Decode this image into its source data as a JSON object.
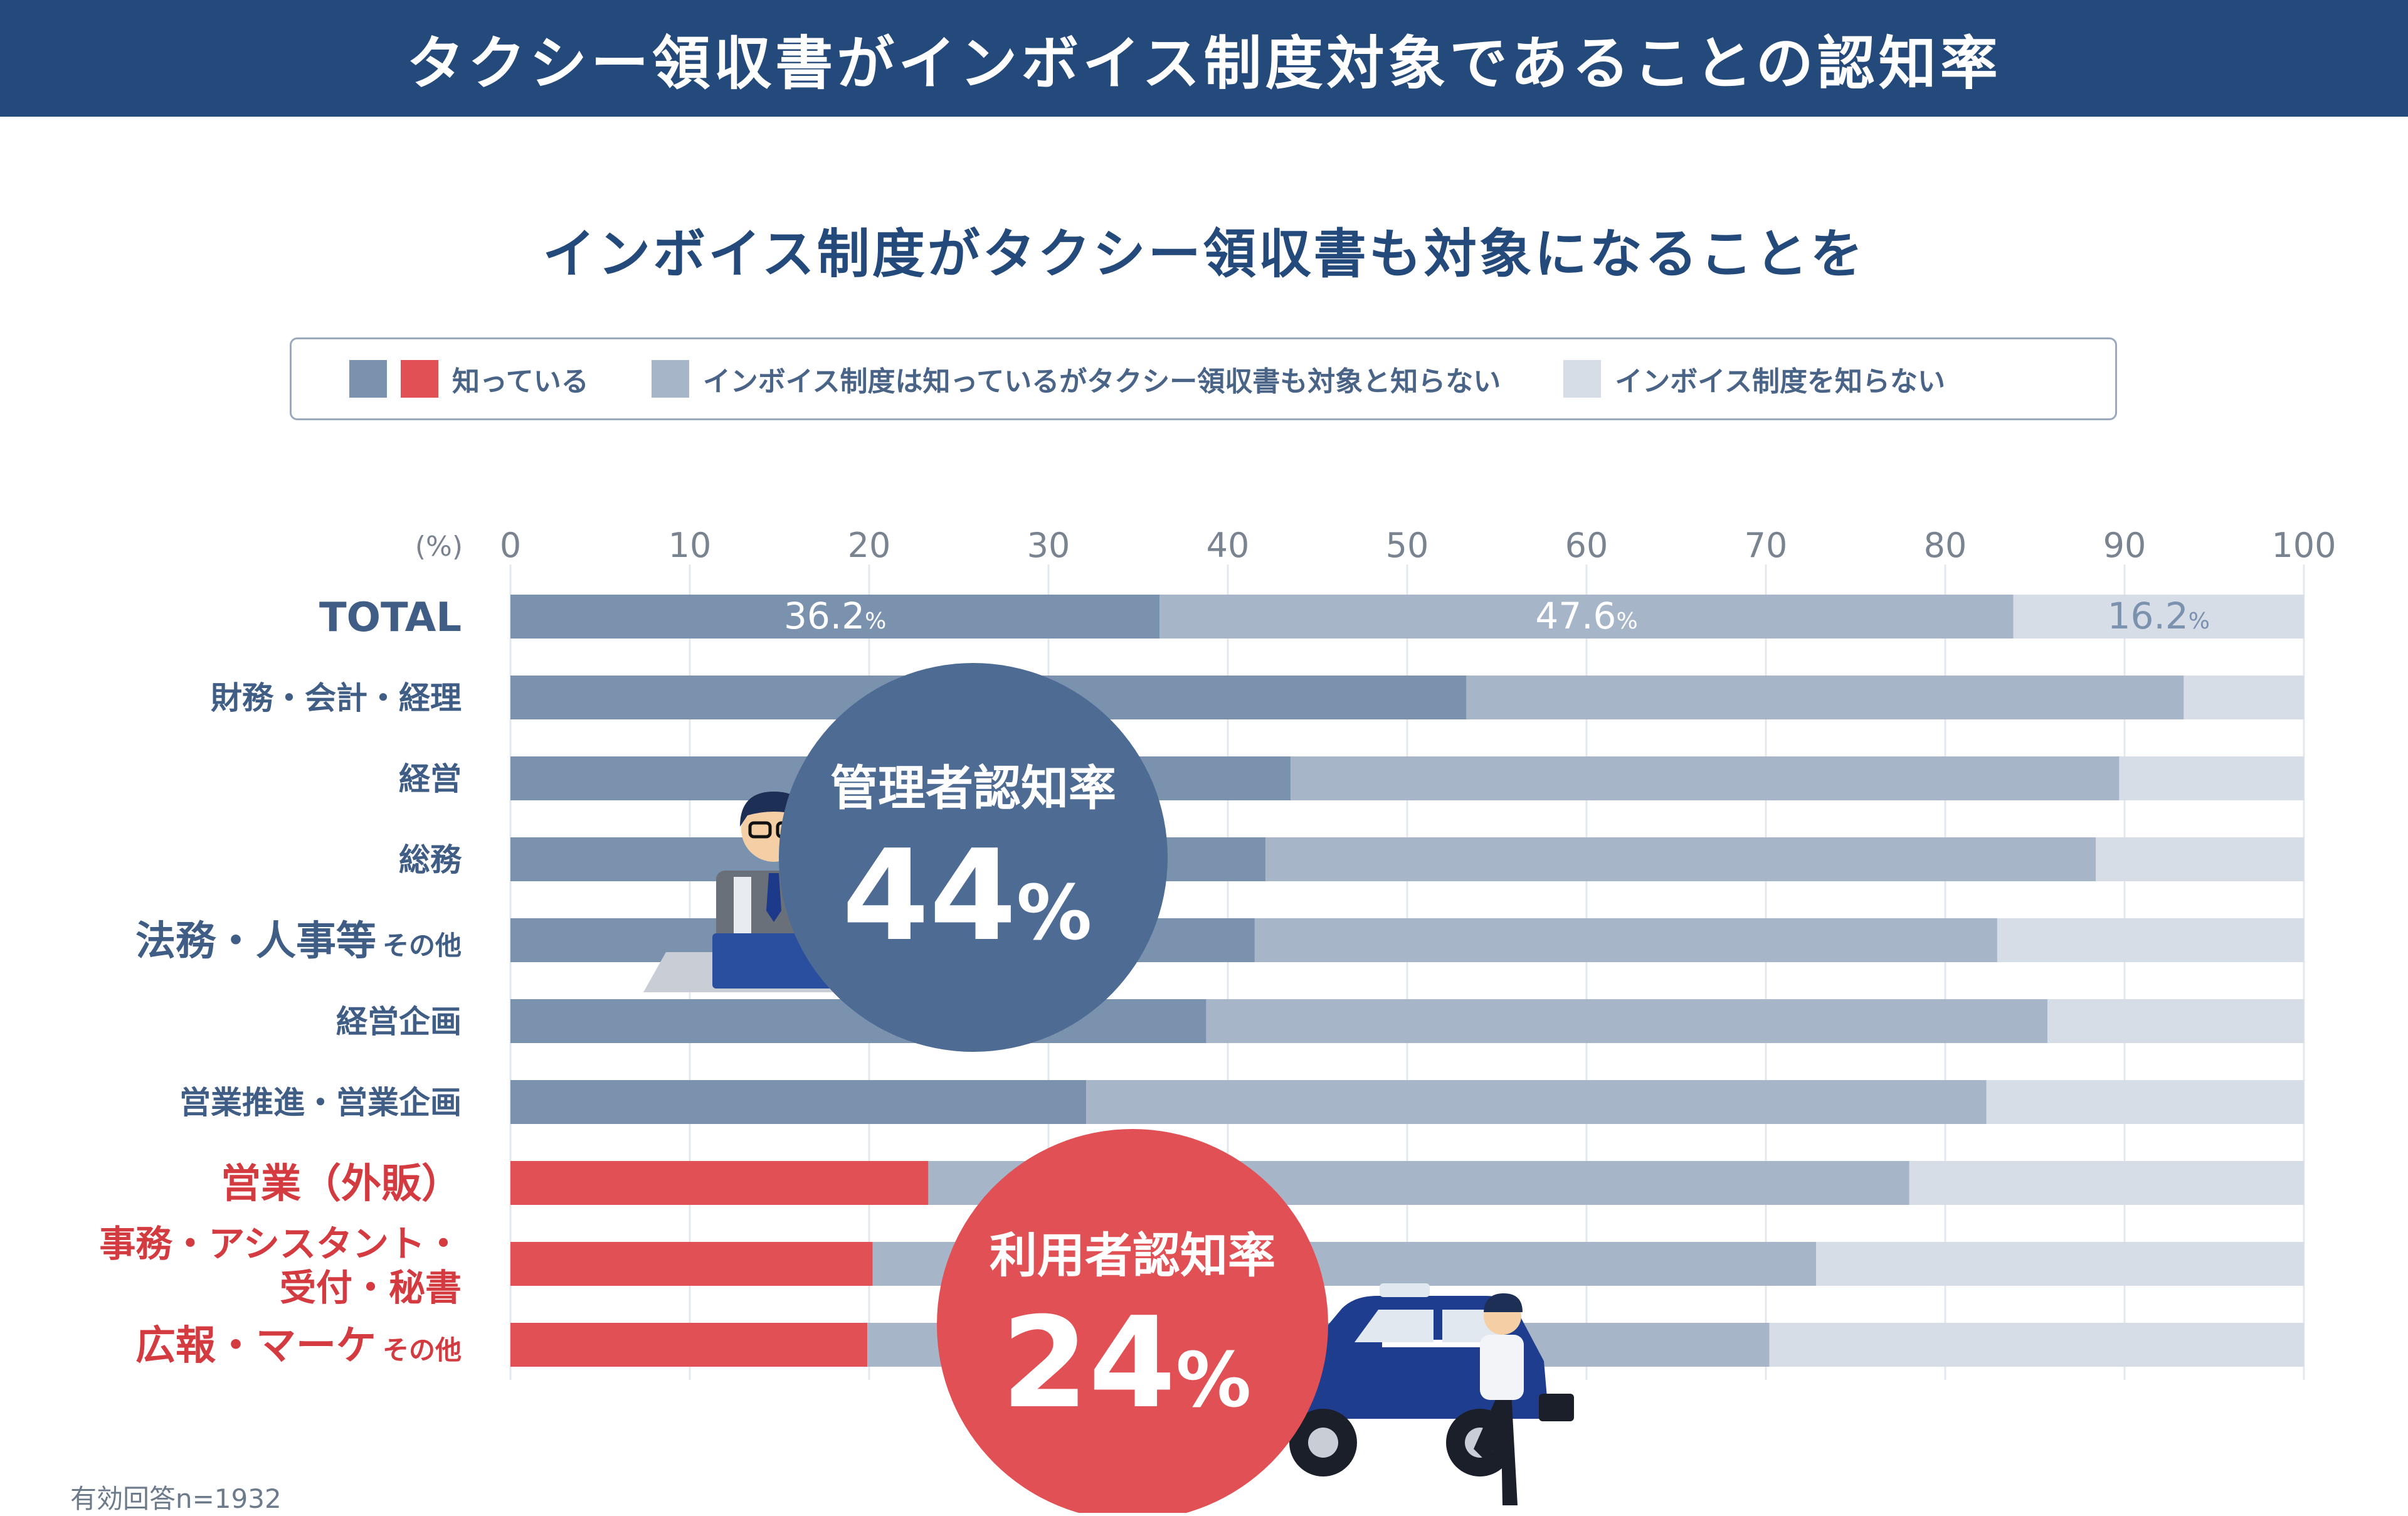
{
  "page": {
    "title": "タクシー領収書がインボイス制度対象であることの認知率",
    "subtitle": "インボイス制度がタクシー領収書も対象になることを",
    "footnote": "有効回答n=1932"
  },
  "legend": [
    {
      "label": "知っている",
      "colors": [
        "#7b92af",
        "#e05054"
      ]
    },
    {
      "label": "インボイス制度は知っているがタクシー領収書も対象と知らない",
      "colors": [
        "#a7b5c8"
      ]
    },
    {
      "label": "インボイス制度を知らない",
      "colors": [
        "#d6dde6"
      ]
    }
  ],
  "colors": {
    "header_bg": "#234a7a",
    "know_admin": "#7b92af",
    "know_user": "#e05054",
    "invoice_only": "#a7b5c8",
    "dont_know": "#d6dde6",
    "label_blue": "#3f5d85",
    "label_red": "#d43b40",
    "circle_blue": "#4d6b93",
    "circle_red": "#e05054"
  },
  "callouts": [
    {
      "title": "管理者認知率",
      "value": "44",
      "unit": "%",
      "color": "#4d6b93"
    },
    {
      "title": "利用者認知率",
      "value": "24",
      "unit": "%",
      "color": "#e05054"
    }
  ],
  "chart_data": {
    "type": "bar",
    "orientation": "horizontal",
    "stacked": true,
    "unit_label": "(%)",
    "xlim": [
      0,
      100
    ],
    "xticks": [
      0,
      10,
      20,
      30,
      40,
      50,
      60,
      70,
      80,
      90,
      100
    ],
    "grid": true,
    "categories": [
      {
        "main": "TOTAL",
        "group": "total"
      },
      {
        "main": "財務・会計・経理",
        "group": "admin"
      },
      {
        "main": "経営",
        "group": "admin"
      },
      {
        "main": "総務",
        "group": "admin"
      },
      {
        "main": "法務・人事等",
        "suffix": "その他",
        "group": "admin"
      },
      {
        "main": "経営企画",
        "group": "admin"
      },
      {
        "main": "営業推進・営業企画",
        "group": "admin"
      },
      {
        "main": "営業（外販）",
        "group": "user"
      },
      {
        "main": "事務・アシスタント・",
        "line2": "受付・秘書",
        "group": "user"
      },
      {
        "main": "広報・マーケ",
        "suffix": "その他",
        "group": "user"
      }
    ],
    "series": [
      {
        "name": "知っている",
        "values": [
          36.2,
          53.3,
          43.5,
          42.1,
          41.5,
          38.8,
          32.1,
          23.3,
          20.2,
          19.9
        ]
      },
      {
        "name": "インボイス制度は知っているがタクシー領収書も対象と知らない",
        "values": [
          47.6,
          40.0,
          46.2,
          46.3,
          41.4,
          46.9,
          50.2,
          54.7,
          52.6,
          50.3
        ]
      },
      {
        "name": "インボイス制度を知らない",
        "values": [
          16.2,
          6.7,
          10.3,
          11.6,
          17.1,
          14.3,
          17.7,
          22.0,
          27.2,
          29.8
        ]
      }
    ],
    "data_labels": [
      {
        "row": 0,
        "series": 0,
        "text": "36.2",
        "unit": "%"
      },
      {
        "row": 0,
        "series": 1,
        "text": "47.6",
        "unit": "%"
      },
      {
        "row": 0,
        "series": 2,
        "text": "16.2",
        "unit": "%"
      }
    ]
  }
}
